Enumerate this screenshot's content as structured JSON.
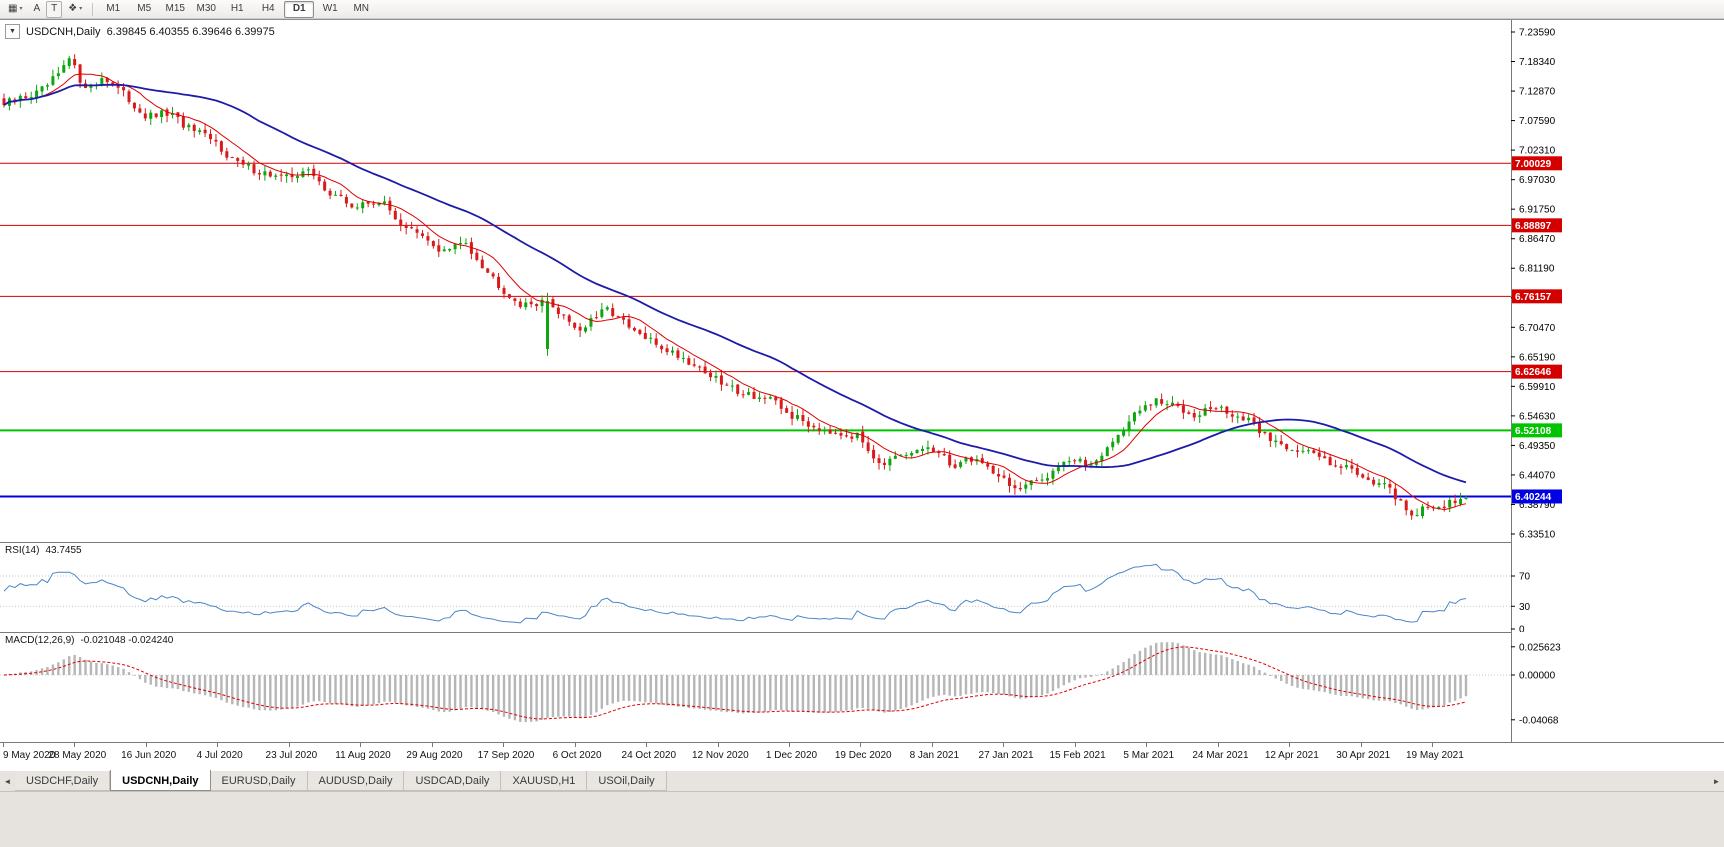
{
  "toolbar": {
    "buttons": [
      {
        "name": "chart-windows-icon",
        "glyph": "▦",
        "caret": "▾"
      },
      {
        "name": "cursor-tool-icon",
        "glyph": "A"
      },
      {
        "name": "text-tool-icon",
        "glyph": "T",
        "boxed": true
      },
      {
        "name": "object-style-icon",
        "glyph": "❖",
        "caret": "▾"
      }
    ],
    "timeframes": [
      "M1",
      "M5",
      "M15",
      "M30",
      "H1",
      "H4",
      "D1",
      "W1",
      "MN"
    ],
    "active_timeframe": "D1"
  },
  "chart_header": {
    "collapse": "▼",
    "symbol": "USDCNH,Daily",
    "ohlc": "6.39845 6.40355 6.39646 6.39975"
  },
  "tabs": {
    "left_arrow": "◄",
    "right_arrow": "►",
    "items": [
      {
        "label": "USDCHF,Daily",
        "active": false
      },
      {
        "label": "USDCNH,Daily",
        "active": true
      },
      {
        "label": "EURUSD,Daily",
        "active": false
      },
      {
        "label": "AUDUSD,Daily",
        "active": false
      },
      {
        "label": "USDCAD,Daily",
        "active": false
      },
      {
        "label": "XAUUSD,H1",
        "active": false
      },
      {
        "label": "USOil,Daily",
        "active": false
      }
    ]
  },
  "chart_data": {
    "type": "candlestick",
    "symbol": "USDCNH",
    "timeframe": "Daily",
    "last_candle": {
      "open": 6.39845,
      "high": 6.40355,
      "low": 6.39646,
      "close": 6.39975
    },
    "y_axis": {
      "top_value": 7.2359,
      "bottom_value": 6.3351,
      "labels": [
        "7.23590",
        "7.18340",
        "7.12870",
        "7.07590",
        "7.02310",
        "6.97030",
        "6.91750",
        "6.86470",
        "6.81190",
        "6.75910",
        "6.70470",
        "6.65190",
        "6.59910",
        "6.54630",
        "6.49350",
        "6.44070",
        "6.38790",
        "6.33510"
      ]
    },
    "x_axis_dates": [
      "9 May 2020",
      "28 May 2020",
      "16 Jun 2020",
      "4 Jul 2020",
      "23 Jul 2020",
      "11 Aug 2020",
      "29 Aug 2020",
      "17 Sep 2020",
      "6 Oct 2020",
      "24 Oct 2020",
      "12 Nov 2020",
      "1 Dec 2020",
      "19 Dec 2020",
      "8 Jan 2021",
      "27 Jan 2021",
      "15 Feb 2021",
      "5 Mar 2021",
      "24 Mar 2021",
      "12 Apr 2021",
      "30 Apr 2021",
      "19 May 2021"
    ],
    "horizontal_levels": [
      {
        "price": 7.00029,
        "label": "7.00029",
        "color": "#d40000",
        "width": 1
      },
      {
        "price": 6.88897,
        "label": "6.88897",
        "color": "#d40000",
        "width": 1
      },
      {
        "price": 6.76157,
        "label": "6.76157",
        "color": "#d40000",
        "width": 1
      },
      {
        "price": 6.62646,
        "label": "6.62646",
        "color": "#d40000",
        "width": 1
      },
      {
        "price": 6.52108,
        "label": "6.52108",
        "color": "#00c400",
        "width": 2
      },
      {
        "price": 6.40244,
        "label": "6.40244",
        "color": "#0000e0",
        "width": 2
      }
    ],
    "n_candles": 270,
    "close_anchors": [
      [
        0.0,
        7.105
      ],
      [
        0.012,
        7.118
      ],
      [
        0.025,
        7.128
      ],
      [
        0.038,
        7.16
      ],
      [
        0.045,
        7.188
      ],
      [
        0.052,
        7.15
      ],
      [
        0.06,
        7.135
      ],
      [
        0.068,
        7.158
      ],
      [
        0.08,
        7.128
      ],
      [
        0.098,
        7.082
      ],
      [
        0.112,
        7.09
      ],
      [
        0.128,
        7.06
      ],
      [
        0.145,
        7.036
      ],
      [
        0.16,
        7.0
      ],
      [
        0.175,
        6.986
      ],
      [
        0.192,
        6.972
      ],
      [
        0.206,
        6.99
      ],
      [
        0.222,
        6.95
      ],
      [
        0.24,
        6.92
      ],
      [
        0.256,
        6.936
      ],
      [
        0.272,
        6.892
      ],
      [
        0.287,
        6.864
      ],
      [
        0.3,
        6.842
      ],
      [
        0.316,
        6.858
      ],
      [
        0.332,
        6.802
      ],
      [
        0.344,
        6.768
      ],
      [
        0.356,
        6.742
      ],
      [
        0.368,
        6.756
      ],
      [
        0.382,
        6.73
      ],
      [
        0.394,
        6.7
      ],
      [
        0.404,
        6.722
      ],
      [
        0.414,
        6.74
      ],
      [
        0.428,
        6.702
      ],
      [
        0.444,
        6.678
      ],
      [
        0.46,
        6.658
      ],
      [
        0.477,
        6.632
      ],
      [
        0.492,
        6.602
      ],
      [
        0.508,
        6.588
      ],
      [
        0.523,
        6.576
      ],
      [
        0.538,
        6.548
      ],
      [
        0.554,
        6.528
      ],
      [
        0.57,
        6.52
      ],
      [
        0.585,
        6.508
      ],
      [
        0.6,
        6.462
      ],
      [
        0.616,
        6.472
      ],
      [
        0.632,
        6.492
      ],
      [
        0.648,
        6.458
      ],
      [
        0.664,
        6.472
      ],
      [
        0.68,
        6.442
      ],
      [
        0.694,
        6.412
      ],
      [
        0.711,
        6.436
      ],
      [
        0.726,
        6.47
      ],
      [
        0.742,
        6.458
      ],
      [
        0.759,
        6.502
      ],
      [
        0.772,
        6.546
      ],
      [
        0.786,
        6.572
      ],
      [
        0.8,
        6.566
      ],
      [
        0.814,
        6.552
      ],
      [
        0.828,
        6.562
      ],
      [
        0.842,
        6.548
      ],
      [
        0.854,
        6.532
      ],
      [
        0.868,
        6.502
      ],
      [
        0.884,
        6.488
      ],
      [
        0.901,
        6.472
      ],
      [
        0.916,
        6.458
      ],
      [
        0.93,
        6.44
      ],
      [
        0.944,
        6.42
      ],
      [
        0.956,
        6.392
      ],
      [
        0.964,
        6.368
      ],
      [
        0.97,
        6.378
      ],
      [
        1.0,
        6.39975
      ]
    ],
    "spike": {
      "f": 0.372,
      "low": 6.655,
      "high": 6.768
    },
    "ma_fast": {
      "period": 8,
      "color": "#e00000"
    },
    "ma_slow": {
      "period": 34,
      "color": "#1c1ca8"
    },
    "colors": {
      "up": "#0fa50f",
      "down": "#d81a1a",
      "rsi_line": "#4a86c8",
      "macd_hist": "#b6b6b6",
      "macd_signal": "#e00000"
    },
    "rsi_panel": {
      "header": "RSI(14)",
      "value": "43.7455",
      "period": 14,
      "level_lines": [
        70,
        30
      ],
      "scale": [
        {
          "label": "70",
          "value": 70
        },
        {
          "label": "30",
          "value": 30
        },
        {
          "label": "0",
          "value": 0
        }
      ]
    },
    "macd_panel": {
      "header": "MACD(12,26,9)",
      "value": "-0.021048 -0.024240",
      "fast": 12,
      "slow": 26,
      "signal_period": 9,
      "macd_value": -0.021048,
      "signal_value": -0.02424,
      "scale": [
        {
          "label": "0.025623",
          "value": 0.025623
        },
        {
          "label": "0.00000",
          "value": 0
        },
        {
          "label": "-0.04068",
          "value": -0.04068
        }
      ]
    }
  }
}
